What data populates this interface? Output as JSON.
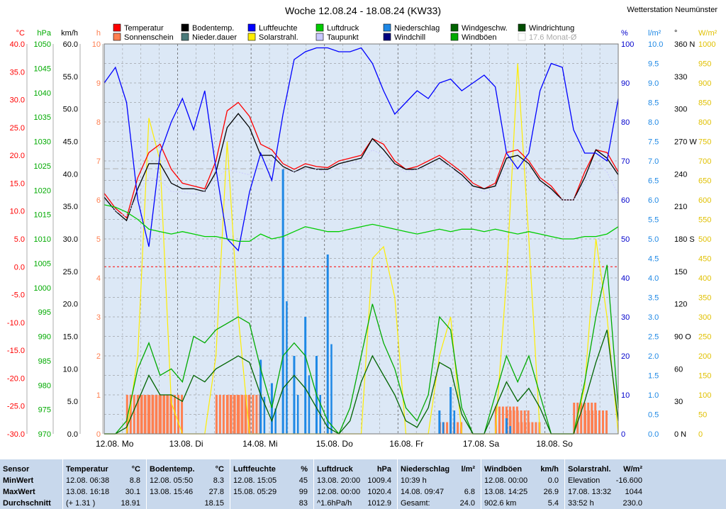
{
  "station": "Wetterstation Neumünster",
  "chart_data": {
    "type": "line",
    "title": "Woche 12.08.24 - 18.08.24 (KW33)",
    "legend": [
      {
        "name": "Temperatur",
        "color": "#ff0000"
      },
      {
        "name": "Sonnenschein",
        "color": "#ff7f50"
      },
      {
        "name": "Bodentemp.",
        "color": "#000000"
      },
      {
        "name": "Nieder.dauer",
        "color": "#4a7a7a"
      },
      {
        "name": "Luftfeuchte",
        "color": "#0000ff"
      },
      {
        "name": "Solarstrahl.",
        "color": "#ffee00"
      },
      {
        "name": "Luftdruck",
        "color": "#00cc00"
      },
      {
        "name": "Taupunkt",
        "color": "#c8c8ff"
      },
      {
        "name": "Niederschlag",
        "color": "#1e88e5"
      },
      {
        "name": "Windchill",
        "color": "#000080"
      },
      {
        "name": "Windgeschw.",
        "color": "#006400"
      },
      {
        "name": "Windböen",
        "color": "#00aa00"
      },
      {
        "name": "Windrichtung",
        "color": "#004d00"
      },
      {
        "name": "17.6 Monat-Ø",
        "color": "#cccccc"
      }
    ],
    "x_ticks": [
      "12.08. Mo",
      "13.08. Di",
      "14.08. Mi",
      "15.08. Do",
      "16.08. Fr",
      "17.08. Sa",
      "18.08. So"
    ],
    "axes": {
      "temp": {
        "label": "°C",
        "color": "#ff0000",
        "ticks": [
          "40.0",
          "35.0",
          "30.0",
          "25.0",
          "20.0",
          "15.0",
          "10.0",
          "5.0",
          "0.0",
          "-5.0",
          "-10.0",
          "-15.0",
          "-20.0",
          "-25.0",
          "-30.0"
        ]
      },
      "pressure": {
        "label": "hPa",
        "color": "#00aa00",
        "ticks": [
          "1050",
          "1045",
          "1040",
          "1035",
          "1030",
          "1025",
          "1020",
          "1015",
          "1010",
          "1005",
          "1000",
          "995",
          "990",
          "985",
          "980",
          "975",
          "970"
        ]
      },
      "wind": {
        "label": "km/h",
        "color": "#000000",
        "ticks": [
          "60.0",
          "55.0",
          "50.0",
          "45.0",
          "40.0",
          "35.0",
          "30.0",
          "25.0",
          "20.0",
          "15.0",
          "10.0",
          "5.0",
          "0.0"
        ]
      },
      "hours": {
        "label": "h",
        "color": "#ff7f50",
        "ticks": [
          "10",
          "9",
          "8",
          "7",
          "6",
          "5",
          "4",
          "3",
          "2",
          "1",
          "0"
        ]
      },
      "humidity": {
        "label": "%",
        "color": "#0000cc",
        "ticks": [
          "100",
          "90",
          "80",
          "70",
          "60",
          "50",
          "40",
          "30",
          "20",
          "10",
          "0"
        ]
      },
      "rain": {
        "label": "l/m²",
        "color": "#1e88e5",
        "ticks": [
          "10.0",
          "9.5",
          "9.0",
          "8.5",
          "8.0",
          "7.5",
          "7.0",
          "6.5",
          "6.0",
          "5.5",
          "5.0",
          "4.5",
          "4.0",
          "3.5",
          "3.0",
          "2.5",
          "2.0",
          "1.5",
          "1.0",
          "0.5",
          "0.0"
        ]
      },
      "direction": {
        "label": "°",
        "color": "#000000",
        "ticks": [
          "360 N",
          "330",
          "300",
          "270 W",
          "240",
          "210",
          "180 S",
          "150",
          "120",
          "90 O",
          "60",
          "30",
          "0 N"
        ]
      },
      "solar": {
        "label": "W/m²",
        "color": "#e0c000",
        "ticks": [
          "1000",
          "950",
          "900",
          "850",
          "800",
          "750",
          "700",
          "650",
          "600",
          "550",
          "500",
          "450",
          "400",
          "350",
          "300",
          "250",
          "200",
          "150",
          "100",
          "50",
          "0"
        ]
      }
    },
    "series": [
      {
        "name": "Temperatur",
        "axis": "temp",
        "values": [
          13.2,
          10.5,
          8.8,
          16.0,
          20.5,
          22.0,
          17.5,
          15.0,
          14.5,
          14.0,
          19.0,
          28.0,
          29.5,
          27.0,
          22.0,
          21.0,
          18.5,
          17.5,
          18.5,
          18.0,
          17.8,
          19.0,
          19.5,
          20.0,
          23.0,
          22.0,
          19.0,
          17.5,
          18.0,
          19.0,
          20.0,
          18.5,
          17.0,
          15.0,
          14.0,
          15.0,
          20.5,
          21.0,
          19.0,
          16.0,
          14.5,
          12.0,
          12.0,
          17.0,
          21.0,
          20.5,
          17.0
        ]
      },
      {
        "name": "Bodentemp.",
        "axis": "temp",
        "values": [
          12.5,
          10.0,
          8.3,
          14.0,
          18.5,
          18.5,
          15.0,
          14.0,
          14.0,
          13.5,
          17.0,
          25.0,
          27.5,
          25.0,
          20.0,
          20.0,
          18.0,
          17.0,
          18.0,
          17.5,
          17.5,
          18.5,
          19.0,
          19.5,
          23.0,
          21.0,
          18.5,
          17.5,
          17.5,
          18.5,
          19.5,
          18.0,
          16.5,
          14.5,
          14.0,
          14.5,
          19.5,
          20.0,
          18.5,
          15.5,
          14.0,
          12.0,
          12.0,
          16.0,
          21.0,
          19.5,
          16.5
        ]
      },
      {
        "name": "Taupunkt",
        "axis": "temp",
        "values": [
          12.0,
          10.0,
          9.0,
          13.0,
          16.0,
          15.5,
          13.5,
          13.5,
          13.0,
          13.5,
          16.0,
          17.5,
          17.0,
          16.5,
          18.5,
          18.0,
          17.5,
          17.0,
          17.5,
          17.5,
          17.0,
          18.0,
          18.5,
          19.0,
          21.0,
          20.0,
          18.0,
          17.0,
          17.5,
          18.0,
          19.0,
          18.0,
          16.0,
          14.0,
          13.5,
          14.0,
          18.0,
          18.0,
          17.0,
          15.0,
          13.5,
          12.0,
          12.0,
          15.0,
          19.0,
          17.0,
          13.0
        ]
      },
      {
        "name": "Luftfeuchte",
        "axis": "humidity",
        "values": [
          90,
          94,
          85,
          60,
          48,
          72,
          80,
          86,
          78,
          88,
          68,
          50,
          47,
          62,
          72,
          65,
          82,
          96,
          98,
          99,
          99,
          98,
          98,
          99,
          95,
          88,
          82,
          85,
          88,
          86,
          90,
          91,
          88,
          90,
          92,
          89,
          72,
          68,
          72,
          88,
          95,
          94,
          78,
          72,
          72,
          70,
          86
        ]
      },
      {
        "name": "Luftdruck",
        "axis": "pressure",
        "values": [
          1017.0,
          1016.5,
          1015.5,
          1014.0,
          1012.0,
          1011.5,
          1011.0,
          1011.5,
          1011.0,
          1010.5,
          1010.5,
          1010.0,
          1009.5,
          1009.5,
          1011.0,
          1010.0,
          1010.5,
          1011.5,
          1012.5,
          1012.0,
          1011.5,
          1011.5,
          1012.0,
          1012.5,
          1013.0,
          1012.5,
          1012.0,
          1011.5,
          1011.0,
          1011.5,
          1012.0,
          1011.5,
          1012.0,
          1012.0,
          1011.5,
          1012.0,
          1011.5,
          1011.0,
          1011.5,
          1011.0,
          1010.5,
          1010.0,
          1010.0,
          1010.5,
          1010.5,
          1011.0,
          1012.5
        ]
      },
      {
        "name": "Windböen",
        "axis": "wind",
        "values": [
          0,
          0,
          2,
          10,
          14,
          9,
          10,
          8,
          15,
          14,
          16,
          17,
          18,
          17,
          10,
          4,
          12,
          14,
          12,
          6,
          2,
          0,
          4,
          12,
          20,
          14,
          10,
          4,
          2,
          6,
          18,
          16,
          4,
          0,
          0,
          6,
          12,
          8,
          12,
          6,
          0,
          0,
          0,
          8,
          18,
          26,
          4
        ]
      },
      {
        "name": "Windgeschw.",
        "axis": "wind",
        "values": [
          0,
          0,
          1,
          5,
          9,
          6,
          6,
          5,
          9,
          8,
          10,
          11,
          12,
          11,
          6,
          2,
          7,
          9,
          7,
          4,
          1,
          0,
          2,
          8,
          12,
          9,
          6,
          2,
          1,
          4,
          11,
          10,
          3,
          0,
          0,
          4,
          8,
          5,
          7,
          4,
          0,
          0,
          0,
          5,
          11,
          16,
          2
        ]
      }
    ],
    "rain": {
      "axis": "rain",
      "values": [
        0,
        0,
        0,
        0,
        0,
        0,
        0,
        0,
        0,
        0,
        0,
        0,
        0,
        0,
        1.9,
        1.3,
        6.8,
        2.0,
        3.0,
        2.0,
        4.6,
        0,
        0,
        0,
        0,
        0,
        0,
        0,
        0,
        0,
        0.6,
        1.2,
        0,
        0,
        0,
        0,
        0.4,
        0,
        0,
        0,
        0,
        0,
        0,
        0,
        0,
        0,
        0
      ]
    },
    "sunshine": {
      "axis": "hours",
      "values": [
        0,
        0,
        0,
        1,
        1,
        1,
        1,
        0,
        0,
        0,
        0,
        1,
        1,
        1,
        0,
        0,
        0,
        0,
        0,
        0,
        0,
        0,
        0,
        0,
        0,
        0,
        0,
        0,
        0,
        0,
        0,
        0.3,
        0,
        0,
        0,
        0,
        0.7,
        0.6,
        0.3,
        0,
        0,
        0,
        0,
        0.8,
        0.6,
        0,
        0
      ]
    },
    "solar": {
      "axis": "solar",
      "values": [
        0,
        0,
        0,
        200,
        810,
        700,
        80,
        0,
        0,
        0,
        200,
        750,
        300,
        0,
        0,
        0,
        0,
        0,
        0,
        0,
        0,
        0,
        0,
        0,
        450,
        480,
        350,
        0,
        0,
        0,
        200,
        300,
        0,
        0,
        0,
        0,
        400,
        950,
        500,
        0,
        0,
        0,
        0,
        120,
        500,
        300,
        0
      ]
    },
    "month_avg": {
      "label": "17.6 Monat-Ø",
      "value": 17.6,
      "axis": "temp"
    },
    "freeze_line": {
      "value": 0.0,
      "axis": "temp"
    }
  },
  "table": {
    "row_labels": [
      "Sensor",
      "MinWert",
      "MaxWert",
      "Durchschnitt"
    ],
    "columns": [
      {
        "title": "Temperatur",
        "unit": "°C",
        "rows": [
          [
            "12.08.  06:38",
            "8.8"
          ],
          [
            "13.08.  16:18",
            "30.1"
          ],
          [
            "(+ 1.31 )",
            "18.91"
          ]
        ]
      },
      {
        "title": "Bodentemp.",
        "unit": "°C",
        "rows": [
          [
            "12.08.  05:50",
            "8.3"
          ],
          [
            "13.08.  15:46",
            "27.8"
          ],
          [
            "",
            "18.15"
          ]
        ]
      },
      {
        "title": "Luftfeuchte",
        "unit": "%",
        "rows": [
          [
            "12.08.  15:05",
            "45"
          ],
          [
            "15.08.  05:29",
            "99"
          ],
          [
            "",
            "83"
          ]
        ]
      },
      {
        "title": "Luftdruck",
        "unit": "hPa",
        "rows": [
          [
            "13.08.  20:00",
            "1009.4"
          ],
          [
            "12.08.  00:00",
            "1020.4"
          ],
          [
            "^1.6hPa/h",
            "1012.9"
          ]
        ]
      },
      {
        "title": "Niederschlag",
        "unit": "l/m²",
        "rows": [
          [
            "10:39 h",
            ""
          ],
          [
            "14.08.  09:47",
            "6.8"
          ],
          [
            "Gesamt:",
            "24.0"
          ]
        ]
      },
      {
        "title": "Windböen",
        "unit": "km/h",
        "rows": [
          [
            "12.08.  00:00",
            "0.0"
          ],
          [
            "13.08.  14:25",
            "26.9"
          ],
          [
            "902.6 km",
            "5.4"
          ]
        ]
      },
      {
        "title": "Solarstrahl.",
        "unit": "W/m²",
        "rows": [
          [
            "Elevation",
            "-16.600"
          ],
          [
            "17.08.  13:32",
            "1044"
          ],
          [
            "33:52 h",
            "230.0"
          ]
        ]
      }
    ]
  }
}
